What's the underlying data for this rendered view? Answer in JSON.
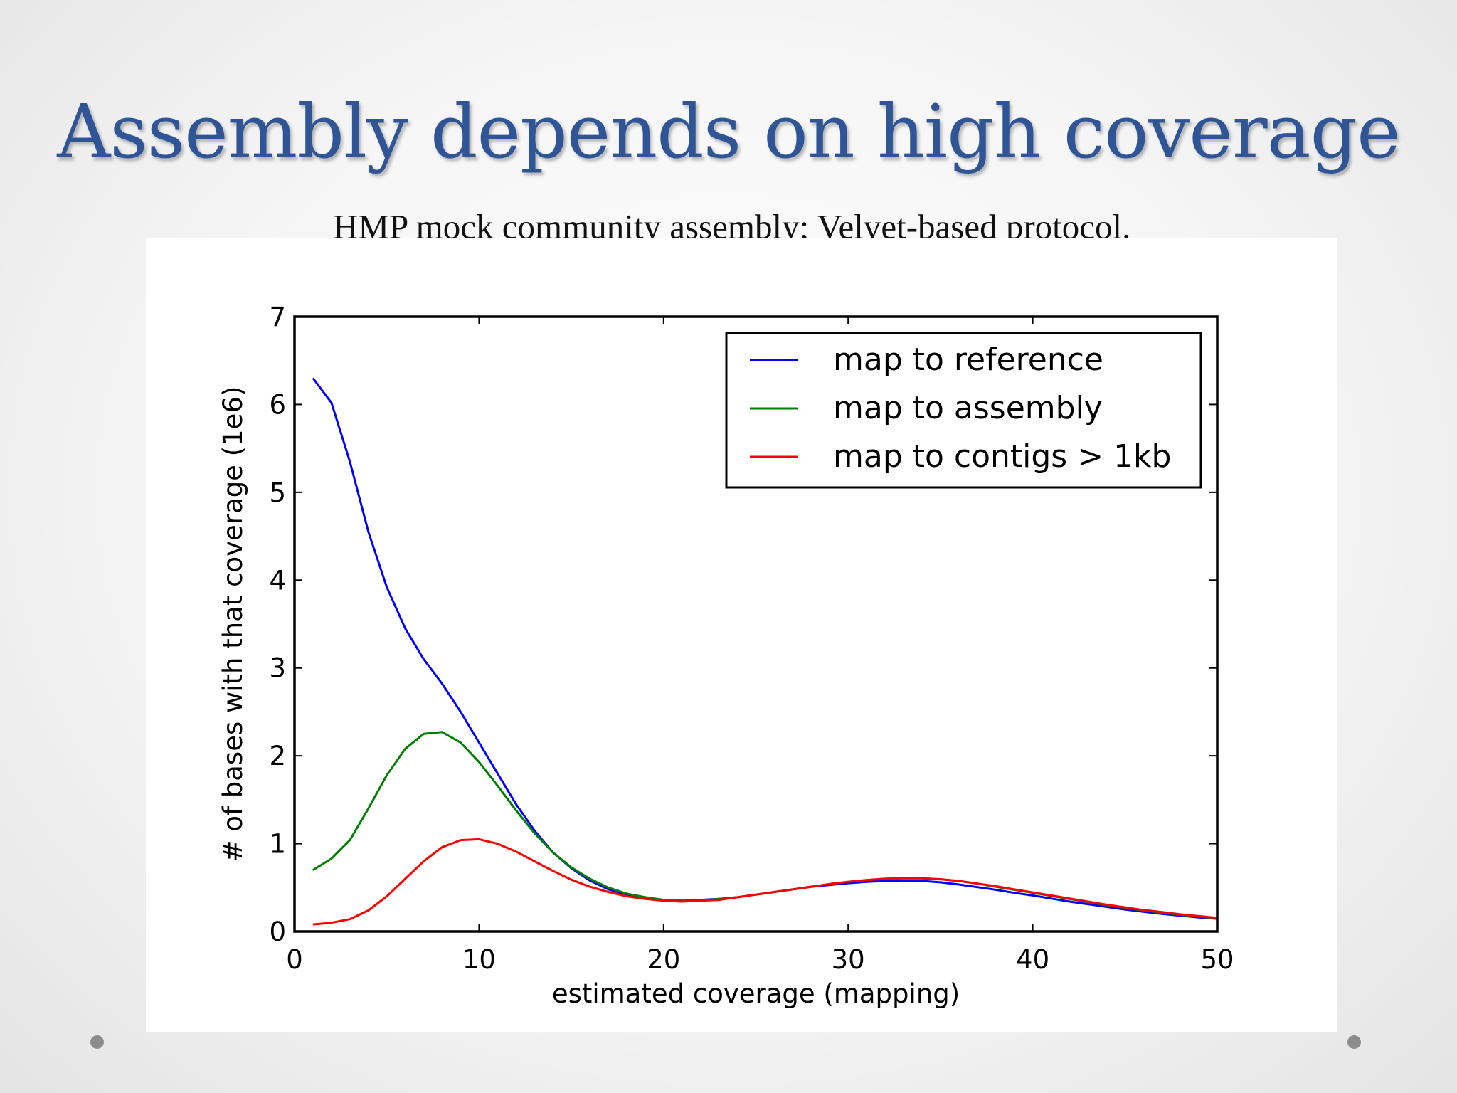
{
  "slide": {
    "title": "Assembly depends on high coverage",
    "subtitle": "HMP mock community assembly; Velvet-based protocol."
  },
  "chart_data": {
    "type": "line",
    "xlabel": "estimated coverage (mapping)",
    "ylabel": "# of bases with that coverage (1e6)",
    "xlim": [
      0,
      50
    ],
    "ylim": [
      0,
      7
    ],
    "xticks": [
      0,
      10,
      20,
      30,
      40,
      50
    ],
    "yticks": [
      0,
      1,
      2,
      3,
      4,
      5,
      6,
      7
    ],
    "grid": false,
    "legend_position": "top-right",
    "x": [
      1,
      2,
      3,
      4,
      5,
      6,
      7,
      8,
      9,
      10,
      11,
      12,
      13,
      14,
      15,
      16,
      17,
      18,
      19,
      20,
      21,
      22,
      23,
      24,
      25,
      26,
      27,
      28,
      29,
      30,
      31,
      32,
      33,
      34,
      35,
      36,
      37,
      38,
      39,
      40,
      41,
      42,
      43,
      44,
      45,
      46,
      47,
      48,
      49,
      50
    ],
    "series": [
      {
        "name": "map to reference",
        "color": "#0000ff",
        "values": [
          6.3,
          6.02,
          5.35,
          4.55,
          3.92,
          3.45,
          3.1,
          2.82,
          2.5,
          2.15,
          1.8,
          1.45,
          1.15,
          0.9,
          0.72,
          0.58,
          0.48,
          0.42,
          0.38,
          0.36,
          0.35,
          0.36,
          0.37,
          0.39,
          0.42,
          0.45,
          0.48,
          0.51,
          0.53,
          0.55,
          0.565,
          0.575,
          0.58,
          0.575,
          0.56,
          0.535,
          0.505,
          0.475,
          0.44,
          0.41,
          0.375,
          0.34,
          0.31,
          0.28,
          0.25,
          0.225,
          0.2,
          0.18,
          0.16,
          0.145
        ]
      },
      {
        "name": "map to assembly",
        "color": "#008000",
        "values": [
          0.7,
          0.83,
          1.04,
          1.4,
          1.78,
          2.08,
          2.25,
          2.27,
          2.15,
          1.93,
          1.66,
          1.38,
          1.12,
          0.9,
          0.73,
          0.6,
          0.5,
          0.43,
          0.39,
          0.36,
          0.35,
          0.35,
          0.37,
          0.39,
          0.42,
          0.45,
          0.48,
          0.51,
          0.54,
          0.565,
          0.585,
          0.6,
          0.605,
          0.605,
          0.595,
          0.575,
          0.545,
          0.51,
          0.475,
          0.44,
          0.405,
          0.37,
          0.335,
          0.3,
          0.27,
          0.24,
          0.215,
          0.19,
          0.17,
          0.15
        ]
      },
      {
        "name": "map to contigs > 1kb",
        "color": "#ff0000",
        "values": [
          0.08,
          0.1,
          0.14,
          0.24,
          0.4,
          0.6,
          0.8,
          0.96,
          1.04,
          1.05,
          1.0,
          0.91,
          0.8,
          0.69,
          0.59,
          0.51,
          0.45,
          0.4,
          0.37,
          0.35,
          0.34,
          0.35,
          0.36,
          0.39,
          0.42,
          0.45,
          0.48,
          0.51,
          0.54,
          0.565,
          0.585,
          0.6,
          0.605,
          0.605,
          0.595,
          0.575,
          0.545,
          0.515,
          0.48,
          0.445,
          0.41,
          0.375,
          0.34,
          0.305,
          0.275,
          0.245,
          0.22,
          0.195,
          0.175,
          0.155
        ]
      }
    ]
  }
}
